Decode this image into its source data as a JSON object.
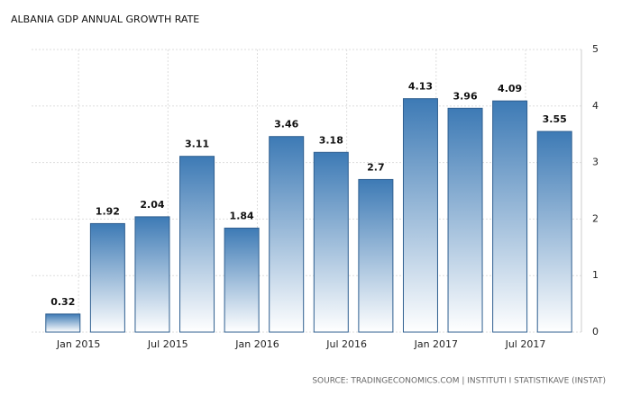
{
  "chart_data": {
    "type": "bar",
    "title": "ALBANIA GDP ANNUAL GROWTH RATE",
    "source": "SOURCE: TRADINGECONOMICS.COM | INSTITUTI I STATISTIKAVE (INSTAT)",
    "categories": [
      null,
      null,
      null,
      null,
      null,
      null,
      null,
      null,
      null,
      null,
      null,
      null
    ],
    "values": [
      0.32,
      1.92,
      2.04,
      3.11,
      1.84,
      3.46,
      3.18,
      2.7,
      4.13,
      3.96,
      4.09,
      3.55
    ],
    "color": "#3d7ab5",
    "xticks": [
      {
        "value": 0.35,
        "label": "Jan 2015"
      },
      {
        "value": 2.35,
        "label": "Jul 2015"
      },
      {
        "value": 4.35,
        "label": "Jan 2016"
      },
      {
        "value": 6.35,
        "label": "Jul 2016"
      },
      {
        "value": 8.35,
        "label": "Jan 2017"
      },
      {
        "value": 10.35,
        "label": "Jul 2017"
      }
    ],
    "ylim": [
      0,
      5
    ],
    "yticks": [
      0,
      1,
      2,
      3,
      4,
      5
    ],
    "grid": true
  }
}
